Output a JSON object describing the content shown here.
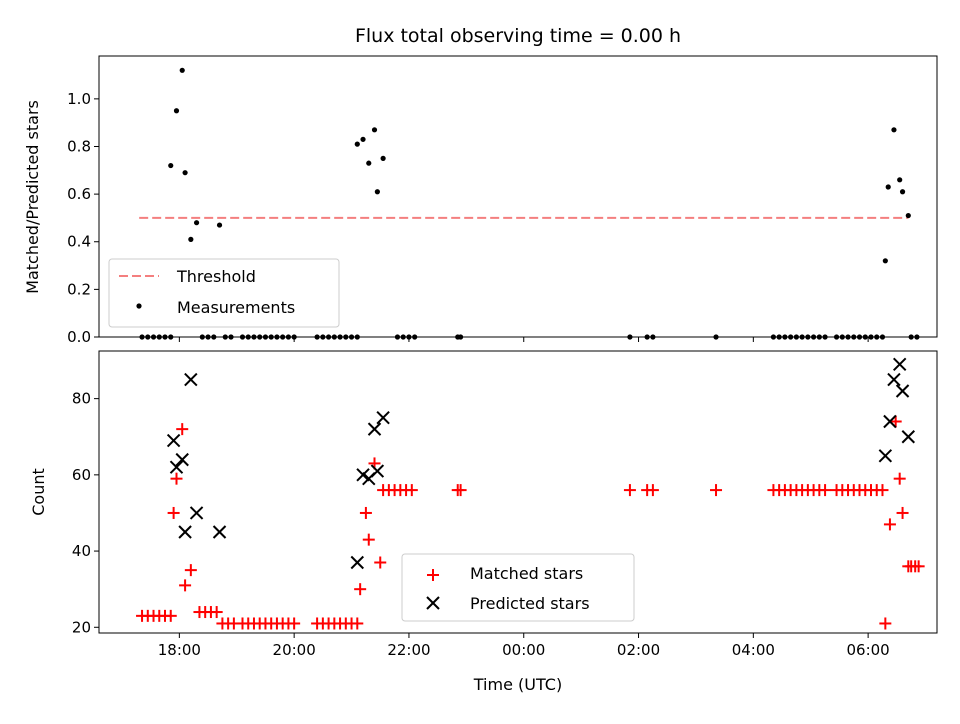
{
  "figure": {
    "title": "Flux total observing time = 0.00 h"
  },
  "chart_data": [
    {
      "type": "scatter",
      "ylabel": "Matched/Predicted stars",
      "xlim": [
        16.6,
        31.2
      ],
      "ylim": [
        0.0,
        1.18
      ],
      "yticks": [
        0.0,
        0.2,
        0.4,
        0.6,
        0.8,
        1.0
      ],
      "ytick_labels": [
        "0.0",
        "0.2",
        "0.4",
        "0.6",
        "0.8",
        "1.0"
      ],
      "legend": {
        "placement": "lower-left",
        "entries": [
          "Threshold",
          "Measurements"
        ]
      },
      "threshold": {
        "name": "Threshold",
        "x": [
          17.3,
          30.7
        ],
        "y": 0.5,
        "color": "#f47f7f",
        "style": "dashed"
      },
      "series": [
        {
          "name": "Measurements",
          "color": "#000000",
          "marker": "dot",
          "points": [
            [
              17.35,
              0
            ],
            [
              17.45,
              0
            ],
            [
              17.55,
              0
            ],
            [
              17.65,
              0
            ],
            [
              17.75,
              0
            ],
            [
              17.85,
              0
            ],
            [
              17.85,
              0.72
            ],
            [
              17.95,
              0.95
            ],
            [
              18.05,
              1.12
            ],
            [
              18.1,
              0.69
            ],
            [
              18.2,
              0.41
            ],
            [
              18.3,
              0.48
            ],
            [
              18.7,
              0.47
            ],
            [
              18.4,
              0
            ],
            [
              18.5,
              0
            ],
            [
              18.6,
              0
            ],
            [
              18.8,
              0
            ],
            [
              18.9,
              0
            ],
            [
              19.1,
              0
            ],
            [
              19.2,
              0
            ],
            [
              19.3,
              0
            ],
            [
              19.4,
              0
            ],
            [
              19.5,
              0
            ],
            [
              19.6,
              0
            ],
            [
              19.7,
              0
            ],
            [
              19.8,
              0
            ],
            [
              19.9,
              0
            ],
            [
              20.0,
              0
            ],
            [
              20.4,
              0
            ],
            [
              20.5,
              0
            ],
            [
              20.6,
              0
            ],
            [
              20.7,
              0
            ],
            [
              20.8,
              0
            ],
            [
              20.9,
              0
            ],
            [
              21.0,
              0
            ],
            [
              21.1,
              0
            ],
            [
              21.1,
              0.81
            ],
            [
              21.2,
              0.83
            ],
            [
              21.3,
              0.73
            ],
            [
              21.4,
              0.87
            ],
            [
              21.45,
              0.61
            ],
            [
              21.55,
              0.75
            ],
            [
              21.8,
              0
            ],
            [
              21.9,
              0
            ],
            [
              22.0,
              0
            ],
            [
              22.1,
              0
            ],
            [
              22.85,
              0
            ],
            [
              22.9,
              0
            ],
            [
              25.85,
              0
            ],
            [
              26.15,
              0
            ],
            [
              26.25,
              0
            ],
            [
              27.35,
              0
            ],
            [
              28.35,
              0
            ],
            [
              28.45,
              0
            ],
            [
              28.55,
              0
            ],
            [
              28.65,
              0
            ],
            [
              28.75,
              0
            ],
            [
              28.85,
              0
            ],
            [
              28.95,
              0
            ],
            [
              29.05,
              0
            ],
            [
              29.15,
              0
            ],
            [
              29.25,
              0
            ],
            [
              29.45,
              0
            ],
            [
              29.55,
              0
            ],
            [
              29.65,
              0
            ],
            [
              29.75,
              0
            ],
            [
              29.85,
              0
            ],
            [
              29.95,
              0
            ],
            [
              30.05,
              0
            ],
            [
              30.15,
              0
            ],
            [
              30.25,
              0
            ],
            [
              30.3,
              0.32
            ],
            [
              30.35,
              0.63
            ],
            [
              30.45,
              0.87
            ],
            [
              30.55,
              0.66
            ],
            [
              30.6,
              0.61
            ],
            [
              30.7,
              0.51
            ],
            [
              30.75,
              0
            ],
            [
              30.85,
              0
            ]
          ]
        }
      ]
    },
    {
      "type": "scatter",
      "xlabel": "Time (UTC)",
      "ylabel": "Count",
      "xlim": [
        16.6,
        31.2
      ],
      "ylim": [
        18.5,
        92.5
      ],
      "xticks": [
        18,
        20,
        22,
        24,
        26,
        28,
        30
      ],
      "xtick_labels": [
        "18:00",
        "20:00",
        "22:00",
        "00:00",
        "02:00",
        "04:00",
        "06:00"
      ],
      "yticks": [
        20,
        40,
        60,
        80
      ],
      "ytick_labels": [
        "20",
        "40",
        "60",
        "80"
      ],
      "legend": {
        "placement": "lower-center",
        "entries": [
          "Matched stars",
          "Predicted stars"
        ]
      },
      "series": [
        {
          "name": "Matched stars",
          "color": "#ff0000",
          "marker": "plus",
          "points": [
            [
              17.35,
              23
            ],
            [
              17.45,
              23
            ],
            [
              17.55,
              23
            ],
            [
              17.65,
              23
            ],
            [
              17.75,
              23
            ],
            [
              17.85,
              23
            ],
            [
              17.9,
              50
            ],
            [
              17.95,
              59
            ],
            [
              18.05,
              72
            ],
            [
              18.1,
              31
            ],
            [
              18.2,
              35
            ],
            [
              18.35,
              24
            ],
            [
              18.45,
              24
            ],
            [
              18.55,
              24
            ],
            [
              18.65,
              24
            ],
            [
              18.75,
              21
            ],
            [
              18.85,
              21
            ],
            [
              18.95,
              21
            ],
            [
              19.1,
              21
            ],
            [
              19.2,
              21
            ],
            [
              19.3,
              21
            ],
            [
              19.4,
              21
            ],
            [
              19.5,
              21
            ],
            [
              19.6,
              21
            ],
            [
              19.7,
              21
            ],
            [
              19.8,
              21
            ],
            [
              19.9,
              21
            ],
            [
              20.0,
              21
            ],
            [
              20.4,
              21
            ],
            [
              20.5,
              21
            ],
            [
              20.6,
              21
            ],
            [
              20.7,
              21
            ],
            [
              20.8,
              21
            ],
            [
              20.9,
              21
            ],
            [
              21.0,
              21
            ],
            [
              21.1,
              21
            ],
            [
              21.15,
              30
            ],
            [
              21.25,
              50
            ],
            [
              21.3,
              43
            ],
            [
              21.4,
              63
            ],
            [
              21.5,
              37
            ],
            [
              21.55,
              56
            ],
            [
              21.65,
              56
            ],
            [
              21.75,
              56
            ],
            [
              21.85,
              56
            ],
            [
              21.95,
              56
            ],
            [
              22.05,
              56
            ],
            [
              22.85,
              56
            ],
            [
              22.9,
              56
            ],
            [
              25.85,
              56
            ],
            [
              26.15,
              56
            ],
            [
              26.25,
              56
            ],
            [
              27.35,
              56
            ],
            [
              28.35,
              56
            ],
            [
              28.45,
              56
            ],
            [
              28.55,
              56
            ],
            [
              28.65,
              56
            ],
            [
              28.75,
              56
            ],
            [
              28.85,
              56
            ],
            [
              28.95,
              56
            ],
            [
              29.05,
              56
            ],
            [
              29.15,
              56
            ],
            [
              29.25,
              56
            ],
            [
              29.45,
              56
            ],
            [
              29.55,
              56
            ],
            [
              29.65,
              56
            ],
            [
              29.75,
              56
            ],
            [
              29.85,
              56
            ],
            [
              29.95,
              56
            ],
            [
              30.05,
              56
            ],
            [
              30.15,
              56
            ],
            [
              30.25,
              56
            ],
            [
              30.3,
              21
            ],
            [
              30.38,
              47
            ],
            [
              30.48,
              74
            ],
            [
              30.55,
              59
            ],
            [
              30.6,
              50
            ],
            [
              30.7,
              36
            ],
            [
              30.75,
              36
            ],
            [
              30.82,
              36
            ],
            [
              30.88,
              36
            ]
          ]
        },
        {
          "name": "Predicted stars",
          "color": "#000000",
          "marker": "x",
          "points": [
            [
              17.9,
              69
            ],
            [
              17.95,
              62
            ],
            [
              18.05,
              64
            ],
            [
              18.1,
              45
            ],
            [
              18.2,
              85
            ],
            [
              18.3,
              50
            ],
            [
              18.7,
              45
            ],
            [
              21.1,
              37
            ],
            [
              21.2,
              60
            ],
            [
              21.3,
              59
            ],
            [
              21.4,
              72
            ],
            [
              21.45,
              61
            ],
            [
              21.55,
              75
            ],
            [
              30.3,
              65
            ],
            [
              30.38,
              74
            ],
            [
              30.45,
              85
            ],
            [
              30.55,
              89
            ],
            [
              30.6,
              82
            ],
            [
              30.7,
              70
            ]
          ]
        }
      ]
    }
  ]
}
